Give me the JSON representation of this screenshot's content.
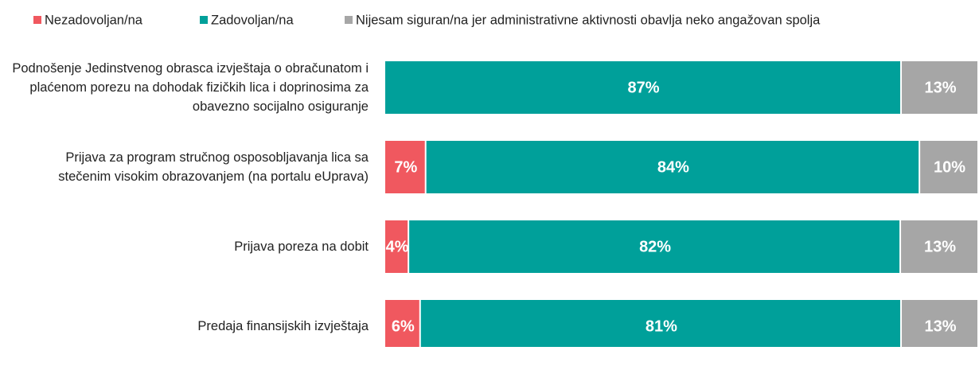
{
  "chart_data": {
    "type": "stacked_bar_horizontal",
    "categories": [
      "Podnošenje Jedinstvenog obrasca izvještaja o obračunatom i plaćenom porezu na dohodak fizičkih lica i doprinosima za obavezno socijalno osiguranje",
      "Prijava za program stručnog osposobljavanja lica sa stečenim visokim obrazovanjem (na portalu eUprava)",
      "Prijava poreza na dobit",
      "Predaja finansijskih izvještaja"
    ],
    "series": [
      {
        "name": "Nezadovoljan/na",
        "color": "#f0585f",
        "values": [
          null,
          7,
          4,
          6
        ],
        "value_labels": [
          null,
          "7%",
          "4%",
          "6%"
        ]
      },
      {
        "name": "Zadovoljan/na",
        "color": "#00a09a",
        "values": [
          87,
          84,
          82,
          81
        ],
        "value_labels": [
          "87%",
          "84%",
          "82%",
          "81%"
        ]
      },
      {
        "name": "Nijesam siguran/na jer administrativne aktivnosti obavlja neko angažovan spolja",
        "color": "#a6a6a6",
        "values": [
          13,
          10,
          13,
          13
        ],
        "value_labels": [
          "13%",
          "10%",
          "13%",
          "13%"
        ]
      }
    ],
    "legend": "top"
  }
}
